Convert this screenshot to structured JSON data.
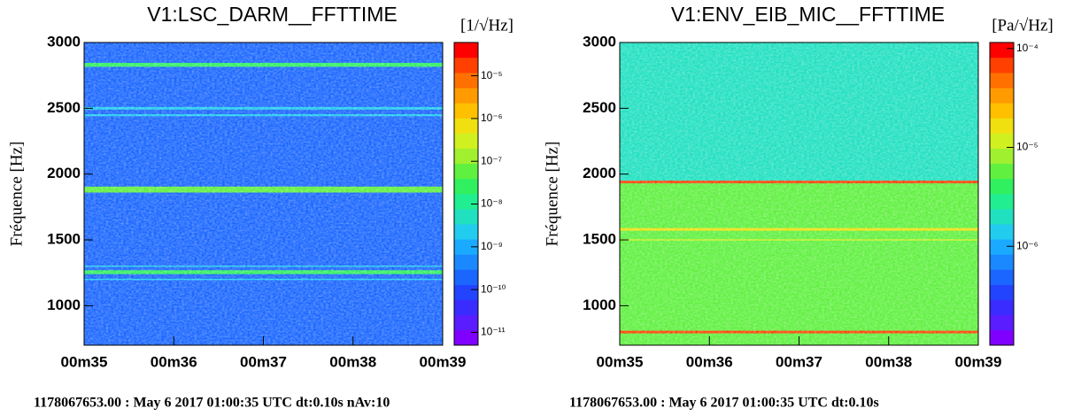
{
  "chart_data": [
    {
      "type": "heatmap",
      "title": "V1:LSC_DARM__FFTTIME",
      "zlabel": "[1/√Hz]",
      "ylabel": "Fréquence [Hz]",
      "xlim": [
        0,
        4
      ],
      "xticks": [
        {
          "value": 0,
          "label": "00m35"
        },
        {
          "value": 1,
          "label": "00m36"
        },
        {
          "value": 2,
          "label": "00m37"
        },
        {
          "value": 3,
          "label": "00m38"
        },
        {
          "value": 4,
          "label": "00m39"
        }
      ],
      "ylim": [
        700,
        3000
      ],
      "yticks": [
        1000,
        1500,
        2000,
        2500,
        3000
      ],
      "zlim": [
        5e-12,
        6e-05
      ],
      "zscale": "log",
      "zticks": [
        {
          "value": 1e-11,
          "label": "10⁻¹¹"
        },
        {
          "value": 1e-10,
          "label": "10⁻¹⁰"
        },
        {
          "value": 1e-09,
          "label": "10⁻⁹"
        },
        {
          "value": 1e-08,
          "label": "10⁻⁸"
        },
        {
          "value": 1e-07,
          "label": "10⁻⁷"
        },
        {
          "value": 1e-06,
          "label": "10⁻⁶"
        },
        {
          "value": 1e-05,
          "label": "10⁻⁵"
        }
      ],
      "background": 2e-10,
      "bands": {
        "lo": [
          2815,
          2490,
          2440,
          1860,
          1295,
          1240,
          1195
        ],
        "hi": [
          2845,
          2510,
          2455,
          1905,
          1305,
          1270,
          1205
        ],
        "values": [
          3e-08,
          3e-09,
          2e-09,
          5e-08,
          2e-09,
          3e-08,
          2e-09
        ]
      },
      "footer": "1178067653.00 : May  6 2017 01:00:35 UTC dt:0.10s nAv:10"
    },
    {
      "type": "heatmap",
      "title": "V1:ENV_EIB_MIC__FFTTIME",
      "zlabel": "[Pa/√Hz]",
      "ylabel": "Fréquence [Hz]",
      "xlim": [
        0,
        4
      ],
      "xticks": [
        {
          "value": 0,
          "label": "00m35"
        },
        {
          "value": 1,
          "label": "00m36"
        },
        {
          "value": 2,
          "label": "00m37"
        },
        {
          "value": 3,
          "label": "00m38"
        },
        {
          "value": 4,
          "label": "00m39"
        }
      ],
      "ylim": [
        700,
        3000
      ],
      "yticks": [
        1000,
        1500,
        2000,
        2500,
        3000
      ],
      "zlim": [
        1e-07,
        0.000115
      ],
      "zscale": "log",
      "zticks": [
        {
          "value": 1e-06,
          "label": "10⁻⁶"
        },
        {
          "value": 1e-05,
          "label": "10⁻⁵"
        },
        {
          "value": 0.0001,
          "label": "10⁻⁴"
        }
      ],
      "background": 2e-06,
      "bands": {
        "lo": [
          700,
          1930,
          1570,
          1495,
          790
        ],
        "hi": [
          1930,
          1950,
          1590,
          1505,
          810
        ],
        "values": [
          6e-06,
          8e-05,
          1.8e-05,
          1.2e-05,
          8e-05
        ]
      },
      "footer": "1178067653.00 : May  6 2017 01:00:35 UTC dt:0.10s"
    }
  ],
  "palette": [
    "#8000ff",
    "#5a1dff",
    "#3a2cff",
    "#2244ff",
    "#1a66ff",
    "#1a88ff",
    "#1aaaff",
    "#22ccee",
    "#20e0c0",
    "#20ee90",
    "#30f060",
    "#60f040",
    "#a0f030",
    "#d0f020",
    "#f0e010",
    "#ffc000",
    "#ff9a00",
    "#ff7000",
    "#ff4000",
    "#ff0000"
  ]
}
